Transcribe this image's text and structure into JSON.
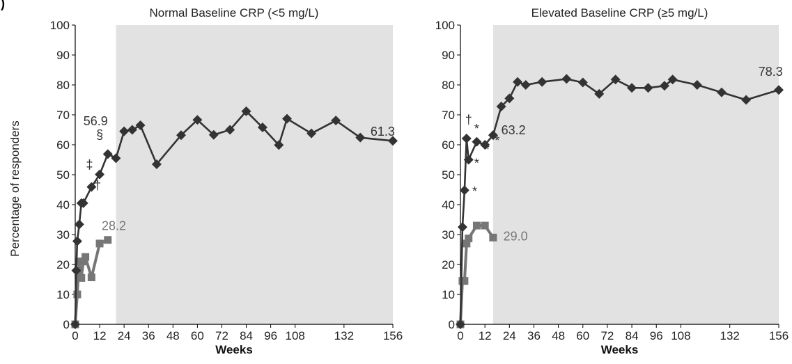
{
  "figure": {
    "corner_label": ")",
    "ylabel": "Percentage of responders",
    "xlabel": "Weeks"
  },
  "chart_data": [
    {
      "type": "line",
      "title": "Normal Baseline CRP (<5 mg/L)",
      "xlabel": "Weeks",
      "ylabel": "Percentage of responders",
      "xlim": [
        0,
        156
      ],
      "ylim": [
        0,
        100
      ],
      "x_ticks": [
        0,
        12,
        24,
        36,
        48,
        60,
        72,
        84,
        96,
        108,
        132,
        156
      ],
      "y_ticks": [
        0,
        10,
        20,
        30,
        40,
        50,
        60,
        70,
        80,
        90,
        100
      ],
      "shaded_region": [
        20,
        156
      ],
      "grid": false,
      "series": [
        {
          "color": "#333333",
          "marker": "diamond",
          "x": [
            0,
            0.5,
            1,
            2,
            3,
            4,
            8,
            12,
            16,
            20,
            24,
            28,
            32,
            40,
            52,
            60,
            68,
            76,
            84,
            92,
            100,
            104,
            116,
            128,
            140,
            156
          ],
          "y": [
            0,
            18,
            27.8,
            33.4,
            40.5,
            40.5,
            45.9,
            50.1,
            56.9,
            55.5,
            64.5,
            65,
            66.5,
            53.5,
            63.2,
            68.3,
            63.3,
            65,
            71.2,
            65.8,
            59.9,
            68.7,
            63.8,
            68.1,
            62.4,
            61.3
          ]
        },
        {
          "color": "#767676",
          "marker": "square",
          "x": [
            0,
            1,
            2,
            3,
            4,
            5,
            8,
            12,
            16
          ],
          "y": [
            0,
            10,
            21,
            15.5,
            21,
            22.5,
            15.7,
            27,
            28.2
          ]
        }
      ],
      "annotations": [
        {
          "text": "56.9",
          "x": 10,
          "y": 66.5,
          "color": "#333333"
        },
        {
          "text": "§",
          "x": 12,
          "y": 62,
          "color": "#333333"
        },
        {
          "text": "‡",
          "x": 7,
          "y": 52,
          "color": "#333333"
        },
        {
          "text": "†",
          "x": 11,
          "y": 45,
          "color": "#333333"
        },
        {
          "text": "28.2",
          "x": 19,
          "y": 31.5,
          "color": "#767676"
        },
        {
          "text": "61.3",
          "x": 151,
          "y": 63,
          "color": "#333333"
        }
      ]
    },
    {
      "type": "line",
      "title": "Elevated Baseline CRP (≥5 mg/L)",
      "xlabel": "Weeks",
      "ylabel": "Percentage of responders",
      "xlim": [
        0,
        156
      ],
      "ylim": [
        0,
        100
      ],
      "x_ticks": [
        0,
        12,
        24,
        36,
        48,
        60,
        72,
        84,
        96,
        108,
        132,
        156
      ],
      "y_ticks": [
        0,
        10,
        20,
        30,
        40,
        50,
        60,
        70,
        80,
        90,
        100
      ],
      "shaded_region": [
        16,
        156
      ],
      "grid": false,
      "series": [
        {
          "color": "#333333",
          "marker": "diamond",
          "x": [
            0,
            1,
            2,
            3,
            4,
            8,
            12,
            16,
            20,
            24,
            28,
            32,
            40,
            52,
            60,
            68,
            76,
            84,
            92,
            100,
            104,
            116,
            128,
            140,
            156
          ],
          "y": [
            0,
            32.5,
            44.8,
            62.1,
            55,
            61,
            60,
            63.2,
            72.8,
            75.5,
            81,
            80,
            81,
            82,
            80.8,
            77,
            81.8,
            79,
            79,
            79.7,
            81.8,
            80,
            77.5,
            75,
            78.3
          ]
        },
        {
          "color": "#767676",
          "marker": "square",
          "x": [
            0,
            1,
            2,
            3,
            4,
            8,
            12,
            16
          ],
          "y": [
            0,
            14.5,
            14.5,
            27,
            28.7,
            33,
            33,
            29
          ]
        }
      ],
      "annotations": [
        {
          "text": "†",
          "x": 4,
          "y": 67,
          "color": "#333333"
        },
        {
          "text": "*",
          "x": 8,
          "y": 64,
          "color": "#333333"
        },
        {
          "text": "*",
          "x": 13,
          "y": 57,
          "color": "#333333"
        },
        {
          "text": "*",
          "x": 8,
          "y": 52.5,
          "color": "#333333"
        },
        {
          "text": "*",
          "x": 7,
          "y": 43,
          "color": "#333333"
        },
        {
          "text": "*",
          "x": 18,
          "y": 60,
          "color": "#333333"
        },
        {
          "text": "63.2",
          "x": 26,
          "y": 63.5,
          "color": "#333333"
        },
        {
          "text": "29.0",
          "x": 27,
          "y": 28,
          "color": "#767676"
        },
        {
          "text": "78.3",
          "x": 152,
          "y": 83,
          "color": "#333333"
        }
      ]
    }
  ]
}
